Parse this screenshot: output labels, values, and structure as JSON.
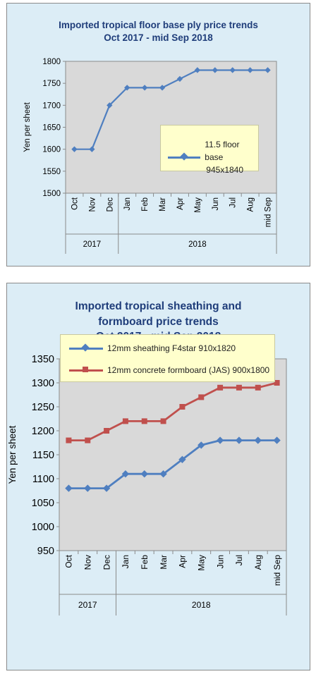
{
  "chart_data": [
    {
      "type": "line",
      "title_lines": [
        "Imported tropical floor base ply price trends",
        "Oct 2017 - mid Sep 2018"
      ],
      "ylabel": "Yen per sheet",
      "ylim": [
        1500,
        1800
      ],
      "yticks": [
        1500,
        1550,
        1600,
        1650,
        1700,
        1750,
        1800
      ],
      "categories": [
        "Oct",
        "Nov",
        "Dec",
        "Jan",
        "Feb",
        "Mar",
        "Apr",
        "May",
        "Jun",
        "Jul",
        "Aug",
        "mid Sep"
      ],
      "year_groups": [
        {
          "label": "2017",
          "count": 3
        },
        {
          "label": "2018",
          "count": 9
        }
      ],
      "grid": false,
      "legend_placement": "inside-right",
      "series": [
        {
          "name": "11.5 floor base",
          "name_line2": "945x1840",
          "color": "#4f7fc0",
          "marker": "diamond",
          "values": [
            1600,
            1600,
            1700,
            1740,
            1740,
            1740,
            1760,
            1780,
            1780,
            1780,
            1780,
            1780
          ]
        }
      ]
    },
    {
      "type": "line",
      "title_lines": [
        "Imported tropical sheathing and",
        "formboard price trends",
        "Oct 2017 - mid Sep 2018"
      ],
      "ylabel": "Yen per sheet",
      "ylim": [
        950,
        1350
      ],
      "yticks": [
        950,
        1000,
        1050,
        1100,
        1150,
        1200,
        1250,
        1300,
        1350
      ],
      "categories": [
        "Oct",
        "Nov",
        "Dec",
        "Jan",
        "Feb",
        "Mar",
        "Apr",
        "May",
        "Jun",
        "Jul",
        "Aug",
        "mid Sep"
      ],
      "year_groups": [
        {
          "label": "2017",
          "count": 3
        },
        {
          "label": "2018",
          "count": 9
        }
      ],
      "grid": false,
      "legend_placement": "bottom",
      "series": [
        {
          "name": "12mm sheathing F4star 910x1820",
          "color": "#4f7fc0",
          "marker": "diamond",
          "values": [
            1080,
            1080,
            1080,
            1110,
            1110,
            1110,
            1140,
            1170,
            1180,
            1180,
            1180,
            1180
          ]
        },
        {
          "name": "12mm concrete formboard (JAS) 900x1800",
          "color": "#c0504d",
          "marker": "square",
          "values": [
            1180,
            1180,
            1200,
            1220,
            1220,
            1220,
            1250,
            1270,
            1290,
            1290,
            1290,
            1300
          ]
        }
      ]
    }
  ]
}
